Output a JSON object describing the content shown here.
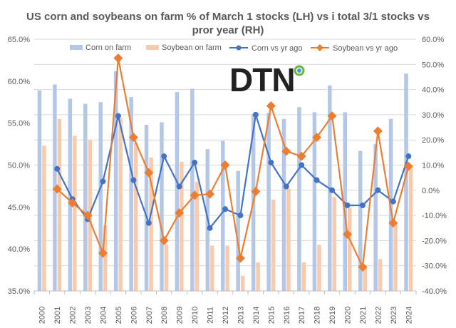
{
  "chart_data": {
    "type": "bar+line",
    "title_lines": [
      "US corn and soybeans on farm % of March 1 stocks (LH) vs i total 3/1 stocks vs",
      "pror year (RH)"
    ],
    "categories": [
      "2000",
      "2001",
      "2002",
      "2003",
      "2004",
      "2005",
      "2006",
      "2007",
      "2008",
      "2009",
      "2010",
      "2011",
      "2012",
      "2013",
      "2014",
      "2015",
      "2016",
      "2017",
      "2018",
      "2019",
      "2020",
      "2021",
      "2022",
      "2023",
      "2024"
    ],
    "left_axis": {
      "min": 35,
      "max": 65,
      "step": 5,
      "tick_labels": [
        "35.0%",
        "40.0%",
        "45.0%",
        "50.0%",
        "55.0%",
        "60.0%",
        "65.0%"
      ]
    },
    "right_axis": {
      "min": -40,
      "max": 60,
      "step": 10,
      "tick_labels": [
        "-40.0%",
        "-30.0%",
        "-20.0%",
        "-10.0%",
        "0.0%",
        "10.0%",
        "20.0%",
        "30.0%",
        "40.0%",
        "50.0%",
        "60.0%"
      ]
    },
    "bar_series": [
      {
        "name": "Corn on farm",
        "color": "#b4c7e7",
        "values": [
          58.9,
          59.6,
          57.9,
          57.3,
          57.5,
          61.2,
          58.1,
          54.8,
          55.1,
          58.7,
          59.1,
          51.9,
          52.9,
          49.3,
          56.1,
          56.2,
          55.5,
          56.9,
          56.3,
          59.5,
          56.3,
          51.7,
          52.5,
          55.5,
          60.9
        ]
      },
      {
        "name": "Soybean on farm",
        "color": "#f8cbad",
        "values": [
          52.3,
          55.5,
          53.5,
          53.0,
          42.8,
          55.6,
          52.7,
          50.9,
          40.5,
          50.4,
          48.0,
          40.4,
          40.4,
          36.8,
          38.4,
          45.9,
          47.2,
          38.4,
          40.5,
          46.2,
          44.9,
          38.0,
          38.8,
          43.0,
          49.9
        ]
      }
    ],
    "line_series": [
      {
        "name": "Corn vs yr ago",
        "color": "#4472c4",
        "marker": "circle",
        "values": [
          null,
          8.5,
          -3.5,
          -11.5,
          3.5,
          29.5,
          4.0,
          -13.0,
          13.5,
          1.5,
          11.0,
          -15.0,
          -7.5,
          -10.0,
          30.0,
          11.0,
          1.5,
          10.0,
          4.0,
          0.0,
          -6.0,
          -6.0,
          0.0,
          -4.5,
          13.5
        ]
      },
      {
        "name": "Soybean vs yr ago",
        "color": "#ed7d31",
        "marker": "diamond",
        "values": [
          null,
          0.5,
          -5.0,
          -10.0,
          -25.0,
          52.5,
          21.0,
          7.0,
          -20.0,
          -9.0,
          -2.0,
          -1.5,
          10.0,
          -27.0,
          -0.5,
          33.5,
          15.5,
          13.5,
          21.0,
          29.5,
          -17.5,
          -30.5,
          23.5,
          -13.0,
          9.5
        ]
      }
    ],
    "legend": "top",
    "grid": "horizontal"
  },
  "logo": {
    "text": "DTN",
    "ring_color": "#6cb33f",
    "ring_inner": "#3aa0d8"
  }
}
